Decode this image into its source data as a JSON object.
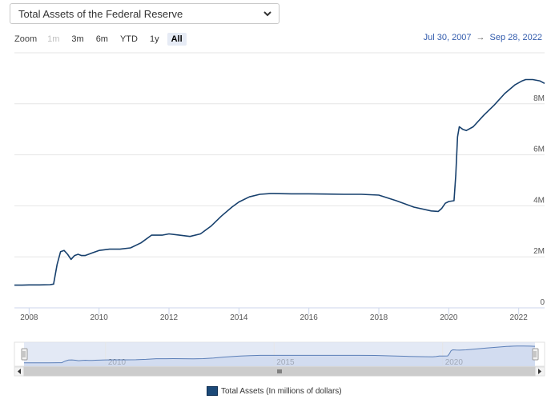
{
  "selector": {
    "label": "Total Assets of the Federal Reserve"
  },
  "zoom": {
    "label": "Zoom",
    "buttons": [
      {
        "label": "1m",
        "state": "disabled"
      },
      {
        "label": "3m",
        "state": "normal"
      },
      {
        "label": "6m",
        "state": "normal"
      },
      {
        "label": "YTD",
        "state": "normal"
      },
      {
        "label": "1y",
        "state": "normal"
      },
      {
        "label": "All",
        "state": "active"
      }
    ]
  },
  "range": {
    "from": "Jul 30, 2007",
    "arrow": "→",
    "to": "Sep 28, 2022"
  },
  "colors": {
    "line": "#17406d",
    "grid": "#e6e6e6",
    "navigator_fill": "#d9e2f2",
    "navigator_line": "#5b7fb8"
  },
  "chart_data": {
    "type": "line",
    "title": "",
    "xlabel": "",
    "ylabel": "",
    "xlim": [
      2007.58,
      2022.74
    ],
    "ylim": [
      0,
      10
    ],
    "y_unit": "M",
    "yticks": [
      {
        "value": 0,
        "label": "0"
      },
      {
        "value": 2,
        "label": "2M"
      },
      {
        "value": 4,
        "label": "4M"
      },
      {
        "value": 6,
        "label": "6M"
      },
      {
        "value": 8,
        "label": "8M"
      }
    ],
    "xticks": [
      {
        "value": 2008,
        "label": "2008"
      },
      {
        "value": 2010,
        "label": "2010"
      },
      {
        "value": 2012,
        "label": "2012"
      },
      {
        "value": 2014,
        "label": "2014"
      },
      {
        "value": 2016,
        "label": "2016"
      },
      {
        "value": 2018,
        "label": "2018"
      },
      {
        "value": 2020,
        "label": "2020"
      },
      {
        "value": 2022,
        "label": "2022"
      }
    ],
    "navigator_ticks": [
      {
        "value": 2010,
        "label": "2010"
      },
      {
        "value": 2015,
        "label": "2015"
      },
      {
        "value": 2020,
        "label": "2020"
      }
    ],
    "grid": true,
    "legend_position": "bottom-center",
    "series": [
      {
        "name": "Total Assets (In millions of dollars)",
        "x": [
          2007.58,
          2007.8,
          2008.0,
          2008.3,
          2008.6,
          2008.7,
          2008.8,
          2008.9,
          2009.0,
          2009.1,
          2009.2,
          2009.3,
          2009.4,
          2009.5,
          2009.6,
          2009.7,
          2009.8,
          2010.0,
          2010.3,
          2010.6,
          2010.9,
          2011.2,
          2011.5,
          2011.8,
          2012.0,
          2012.3,
          2012.6,
          2012.9,
          2013.2,
          2013.5,
          2013.8,
          2014.0,
          2014.3,
          2014.6,
          2014.9,
          2015.0,
          2015.5,
          2016.0,
          2016.5,
          2017.0,
          2017.5,
          2018.0,
          2018.5,
          2019.0,
          2019.5,
          2019.7,
          2019.8,
          2019.9,
          2020.0,
          2020.15,
          2020.2,
          2020.25,
          2020.3,
          2020.4,
          2020.5,
          2020.7,
          2021.0,
          2021.3,
          2021.6,
          2021.9,
          2022.1,
          2022.2,
          2022.4,
          2022.6,
          2022.74
        ],
        "values": [
          0.89,
          0.89,
          0.9,
          0.9,
          0.91,
          0.93,
          1.7,
          2.2,
          2.25,
          2.1,
          1.9,
          2.05,
          2.1,
          2.05,
          2.05,
          2.1,
          2.15,
          2.25,
          2.3,
          2.3,
          2.35,
          2.55,
          2.85,
          2.85,
          2.9,
          2.85,
          2.8,
          2.9,
          3.2,
          3.6,
          3.95,
          4.15,
          4.35,
          4.45,
          4.48,
          4.48,
          4.47,
          4.47,
          4.46,
          4.45,
          4.45,
          4.42,
          4.2,
          3.95,
          3.8,
          3.78,
          3.9,
          4.1,
          4.17,
          4.2,
          5.2,
          6.7,
          7.1,
          7.0,
          6.95,
          7.1,
          7.55,
          7.95,
          8.4,
          8.75,
          8.9,
          8.95,
          8.95,
          8.9,
          8.8
        ]
      }
    ]
  },
  "legend": {
    "label": "Total Assets (In millions of dollars)"
  }
}
